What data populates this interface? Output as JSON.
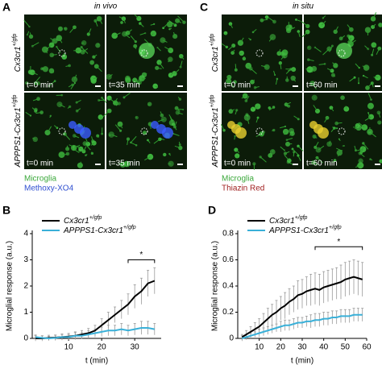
{
  "images": [
    {
      "letter": "A",
      "title": "in vivo",
      "rows": [
        {
          "base": "Cx3cr1",
          "sup": "+/gfp"
        },
        {
          "base": "APPPS1-Cx3cr1",
          "sup": "+/gfp"
        }
      ],
      "tiles": [
        [
          "t=0 min",
          "t=35 min"
        ],
        [
          "t=0 min",
          "t=35 min"
        ]
      ],
      "legend": [
        {
          "text": "Microglia",
          "color": "#3aa83a"
        },
        {
          "text": "Methoxy-XO4",
          "color": "#2f4fd0"
        }
      ]
    },
    {
      "letter": "C",
      "title": "in situ",
      "rows": [
        {
          "base": "Cx3cr1",
          "sup": "+/gfp"
        },
        {
          "base": "APPPS1-Cx3cr1",
          "sup": "+/gfp"
        }
      ],
      "tiles": [
        [
          "t=0 min",
          "t=60 min"
        ],
        [
          "t=0 min",
          "t=60 min"
        ]
      ],
      "legend": [
        {
          "text": "Microglia",
          "color": "#3aa83a"
        },
        {
          "text": "Thiazin Red",
          "color": "#a02020"
        }
      ]
    }
  ],
  "chart_data": [
    {
      "type": "line",
      "panel": "B",
      "xlabel": "t (min)",
      "ylabel": "Microglial response (a.u.)",
      "x": [
        0,
        2,
        4,
        6,
        8,
        10,
        12,
        14,
        16,
        18,
        20,
        22,
        24,
        26,
        28,
        30,
        32,
        34,
        36
      ],
      "xlim": [
        -1,
        38
      ],
      "xticks": [
        10,
        20,
        30
      ],
      "ylim": [
        0,
        4
      ],
      "yticks": [
        0,
        1,
        2,
        3,
        4
      ],
      "series": [
        {
          "name": "Cx3cr1",
          "name_sup": "+/gfp",
          "color": "#000000",
          "values": [
            0,
            0,
            0.02,
            0.03,
            0.05,
            0.07,
            0.1,
            0.15,
            0.2,
            0.3,
            0.5,
            0.7,
            0.9,
            1.1,
            1.3,
            1.6,
            1.8,
            2.1,
            2.2
          ],
          "errors": [
            0.1,
            0.1,
            0.1,
            0.1,
            0.12,
            0.12,
            0.15,
            0.15,
            0.18,
            0.2,
            0.25,
            0.3,
            0.3,
            0.35,
            0.4,
            0.45,
            0.5,
            0.5,
            0.5
          ]
        },
        {
          "name": "APPPS1-Cx3cr1",
          "name_sup": "+/gfp",
          "color": "#3ab0d8",
          "values": [
            0.05,
            0.02,
            0,
            0.02,
            0.05,
            0.05,
            0.1,
            0.1,
            0.15,
            0.2,
            0.25,
            0.3,
            0.3,
            0.35,
            0.3,
            0.35,
            0.4,
            0.4,
            0.35
          ],
          "errors": [
            0.08,
            0.08,
            0.08,
            0.1,
            0.1,
            0.1,
            0.12,
            0.12,
            0.15,
            0.15,
            0.18,
            0.2,
            0.2,
            0.22,
            0.2,
            0.22,
            0.25,
            0.25,
            0.22
          ]
        }
      ],
      "annotations": [
        {
          "text": "*",
          "x1": 28,
          "x2": 36,
          "y": 3
        }
      ]
    },
    {
      "type": "line",
      "panel": "D",
      "xlabel": "t (min)",
      "ylabel": "Microglial response (a.u.)",
      "x": [
        2,
        4,
        6,
        8,
        10,
        12,
        14,
        16,
        18,
        20,
        22,
        24,
        26,
        28,
        30,
        32,
        34,
        36,
        38,
        40,
        42,
        44,
        46,
        48,
        50,
        52,
        54,
        56,
        58
      ],
      "xlim": [
        0,
        60
      ],
      "xticks": [
        10,
        20,
        30,
        40,
        50,
        60
      ],
      "ylim": [
        0,
        0.8
      ],
      "yticks": [
        0,
        0.2,
        0.4,
        0.6,
        0.8
      ],
      "series": [
        {
          "name": "Cx3cr1",
          "name_sup": "+/gfp",
          "color": "#000000",
          "values": [
            0.01,
            0.03,
            0.05,
            0.07,
            0.09,
            0.12,
            0.15,
            0.18,
            0.2,
            0.23,
            0.25,
            0.28,
            0.3,
            0.33,
            0.34,
            0.36,
            0.37,
            0.38,
            0.37,
            0.39,
            0.4,
            0.41,
            0.42,
            0.43,
            0.45,
            0.46,
            0.47,
            0.46,
            0.45
          ],
          "errors": [
            0.02,
            0.03,
            0.04,
            0.05,
            0.06,
            0.07,
            0.08,
            0.08,
            0.09,
            0.09,
            0.1,
            0.1,
            0.1,
            0.11,
            0.11,
            0.11,
            0.12,
            0.12,
            0.12,
            0.12,
            0.12,
            0.12,
            0.12,
            0.13,
            0.13,
            0.13,
            0.13,
            0.13,
            0.13
          ]
        },
        {
          "name": "APPPS1-Cx3cr1",
          "name_sup": "+/gfp",
          "color": "#3ab0d8",
          "values": [
            0,
            0.01,
            0.02,
            0.03,
            0.04,
            0.05,
            0.06,
            0.07,
            0.08,
            0.09,
            0.1,
            0.1,
            0.11,
            0.12,
            0.12,
            0.13,
            0.13,
            0.14,
            0.14,
            0.15,
            0.15,
            0.16,
            0.16,
            0.17,
            0.17,
            0.17,
            0.18,
            0.18,
            0.18
          ],
          "errors": [
            0.02,
            0.02,
            0.02,
            0.02,
            0.03,
            0.03,
            0.03,
            0.03,
            0.03,
            0.04,
            0.04,
            0.04,
            0.04,
            0.04,
            0.04,
            0.04,
            0.05,
            0.05,
            0.05,
            0.05,
            0.05,
            0.05,
            0.05,
            0.05,
            0.05,
            0.05,
            0.05,
            0.05,
            0.05
          ]
        }
      ],
      "annotations": [
        {
          "text": "*",
          "x1": 36,
          "x2": 58,
          "y": 0.7
        }
      ]
    }
  ]
}
